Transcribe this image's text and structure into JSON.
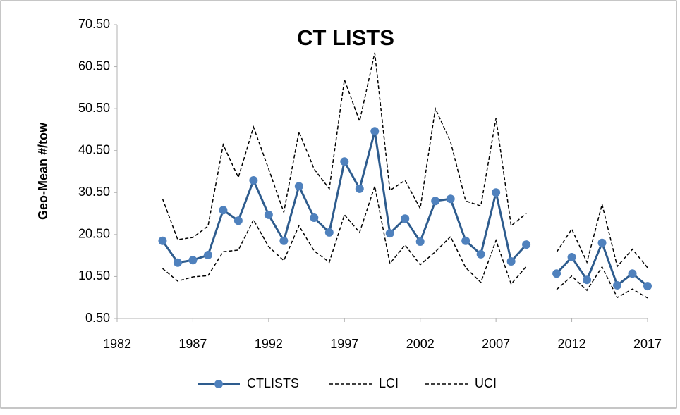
{
  "chart_data": {
    "type": "line",
    "title": "CT LISTS",
    "y_label": "Geo-Mean #/tow",
    "x": [
      1985,
      1986,
      1987,
      1988,
      1989,
      1990,
      1991,
      1992,
      1993,
      1994,
      1995,
      1996,
      1997,
      1998,
      1999,
      2000,
      2001,
      2002,
      2003,
      2004,
      2005,
      2006,
      2007,
      2008,
      2009,
      2010,
      2011,
      2012,
      2013,
      2014,
      2015,
      2016,
      2017
    ],
    "series": [
      {
        "name": "CTLISTS",
        "color": "#2e5c8e",
        "marker_color": "#4f81bd",
        "markers": true,
        "dashed": false,
        "values": [
          19.0,
          13.8,
          14.4,
          15.6,
          26.3,
          23.8,
          33.4,
          25.2,
          19.0,
          32.0,
          24.5,
          21.0,
          37.9,
          31.4,
          45.1,
          20.8,
          24.3,
          18.8,
          28.5,
          29.0,
          19.0,
          15.8,
          30.5,
          14.1,
          18.1,
          null,
          11.2,
          15.1,
          9.7,
          18.5,
          8.4,
          11.2,
          8.2
        ]
      },
      {
        "name": "LCI",
        "color": "#000000",
        "markers": false,
        "dashed": true,
        "values": [
          12.4,
          9.4,
          10.4,
          10.7,
          16.4,
          16.8,
          24.0,
          17.6,
          14.3,
          22.6,
          16.6,
          13.9,
          25.2,
          21.0,
          32.0,
          13.6,
          18.0,
          13.3,
          16.4,
          20.0,
          12.6,
          9.1,
          19.1,
          8.7,
          12.9,
          null,
          7.4,
          10.6,
          7.2,
          12.8,
          5.5,
          7.5,
          5.4
        ]
      },
      {
        "name": "UCI",
        "color": "#000000",
        "markers": false,
        "dashed": true,
        "values": [
          29.0,
          19.3,
          19.8,
          22.5,
          41.9,
          34.1,
          46.1,
          36.1,
          25.8,
          45.0,
          36.1,
          31.4,
          57.4,
          47.5,
          63.8,
          31.0,
          33.4,
          26.7,
          50.5,
          42.6,
          28.5,
          27.3,
          48.2,
          22.6,
          25.5,
          null,
          16.3,
          21.8,
          13.9,
          27.7,
          12.9,
          17.0,
          12.6
        ]
      }
    ],
    "xlim": [
      1982,
      2017
    ],
    "xticks": [
      1982,
      1987,
      1992,
      1997,
      2002,
      2007,
      2012,
      2017
    ],
    "ylim": [
      0.5,
      70.5
    ],
    "yticks": [
      {
        "value": 0.5,
        "label": "0.50"
      },
      {
        "value": 10.5,
        "label": "10.50"
      },
      {
        "value": 20.5,
        "label": "20.50"
      },
      {
        "value": 30.5,
        "label": "30.50"
      },
      {
        "value": 40.5,
        "label": "40.50"
      },
      {
        "value": 50.5,
        "label": "50.50"
      },
      {
        "value": 60.5,
        "label": "60.50"
      },
      {
        "value": 70.5,
        "label": "70.50"
      }
    ],
    "grid": false,
    "legend": "bottom"
  }
}
